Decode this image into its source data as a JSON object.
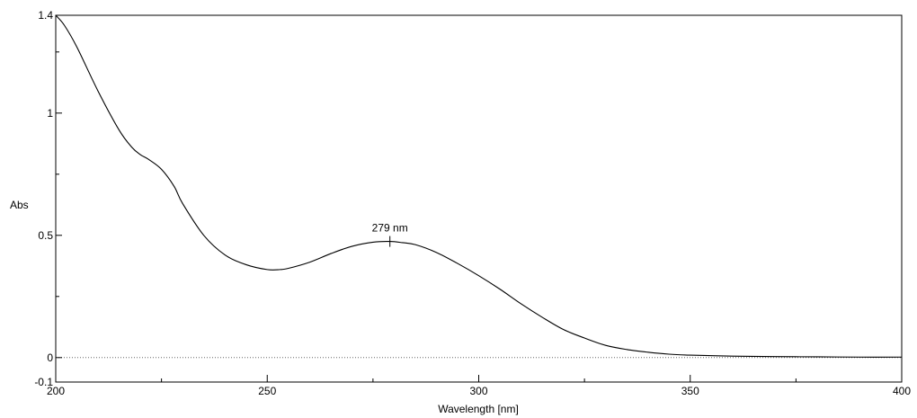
{
  "chart_data": {
    "type": "line",
    "title": "",
    "xlabel": "Wavelength [nm]",
    "ylabel": "Abs",
    "xlim": [
      200,
      400
    ],
    "ylim": [
      -0.1,
      1.4
    ],
    "x_ticks": [
      200,
      250,
      300,
      350,
      400
    ],
    "y_ticks": [
      -0.1,
      0,
      0.5,
      1,
      1.4
    ],
    "x_tick_labels": [
      "200",
      "250",
      "300",
      "350",
      "400"
    ],
    "y_tick_labels": [
      "-0.1",
      "0",
      "0.5",
      "1",
      "1.4"
    ],
    "grid": false,
    "baseline": {
      "y": 0,
      "style": "dotted"
    },
    "series": [
      {
        "x": [
          200,
          202,
          205,
          210,
          215,
          218,
          220,
          222,
          225,
          228,
          230,
          235,
          240,
          245,
          250,
          253,
          255,
          260,
          265,
          270,
          275,
          279,
          282,
          285,
          290,
          295,
          300,
          305,
          310,
          315,
          320,
          325,
          330,
          335,
          340,
          345,
          350,
          360,
          370,
          380,
          390,
          400
        ],
        "y": [
          1.4,
          1.36,
          1.27,
          1.09,
          0.93,
          0.86,
          0.83,
          0.81,
          0.77,
          0.7,
          0.63,
          0.5,
          0.42,
          0.38,
          0.36,
          0.36,
          0.365,
          0.39,
          0.425,
          0.455,
          0.472,
          0.475,
          0.47,
          0.462,
          0.43,
          0.385,
          0.335,
          0.28,
          0.22,
          0.165,
          0.115,
          0.08,
          0.05,
          0.033,
          0.022,
          0.014,
          0.01,
          0.006,
          0.004,
          0.003,
          0.002,
          0.002
        ]
      }
    ],
    "annotations": [
      {
        "x": 279,
        "y": 0.475,
        "text": "279 nm"
      }
    ]
  }
}
